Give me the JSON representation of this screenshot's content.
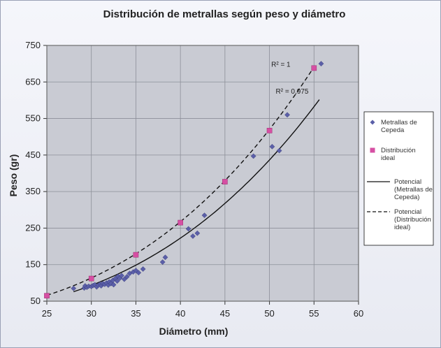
{
  "chart_data": {
    "type": "scatter",
    "title": "Distribución de metrallas según peso y diámetro",
    "xlabel": "Diámetro (mm)",
    "ylabel": "Peso (gr)",
    "xlim": [
      25,
      60
    ],
    "ylim": [
      50,
      750
    ],
    "x_ticks": [
      25,
      30,
      35,
      40,
      45,
      50,
      55,
      60
    ],
    "y_ticks": [
      50,
      150,
      250,
      350,
      450,
      550,
      650,
      750
    ],
    "grid": true,
    "legend_position": "right",
    "series": [
      {
        "name": "Metrallas de Cepeda",
        "kind": "scatter",
        "marker": "diamond",
        "color": "#5b5fa8",
        "points": [
          [
            28.0,
            85
          ],
          [
            29.2,
            86
          ],
          [
            29.3,
            92
          ],
          [
            29.5,
            88
          ],
          [
            29.7,
            91
          ],
          [
            30.0,
            90
          ],
          [
            30.2,
            93
          ],
          [
            30.4,
            95
          ],
          [
            30.6,
            89
          ],
          [
            30.8,
            94
          ],
          [
            31.0,
            97
          ],
          [
            31.1,
            92
          ],
          [
            31.3,
            98
          ],
          [
            31.5,
            96
          ],
          [
            31.7,
            100
          ],
          [
            31.9,
            94
          ],
          [
            32.0,
            103
          ],
          [
            32.2,
            98
          ],
          [
            32.4,
            107
          ],
          [
            32.5,
            95
          ],
          [
            32.7,
            112
          ],
          [
            32.9,
            105
          ],
          [
            33.0,
            118
          ],
          [
            33.2,
            113
          ],
          [
            33.4,
            120
          ],
          [
            33.7,
            110
          ],
          [
            34.0,
            117
          ],
          [
            34.3,
            126
          ],
          [
            34.7,
            130
          ],
          [
            35.0,
            134
          ],
          [
            35.3,
            128
          ],
          [
            35.8,
            138
          ],
          [
            38.0,
            157
          ],
          [
            38.3,
            170
          ],
          [
            40.9,
            248
          ],
          [
            41.4,
            228
          ],
          [
            41.9,
            236
          ],
          [
            42.7,
            285
          ],
          [
            48.2,
            447
          ],
          [
            50.3,
            473
          ],
          [
            51.1,
            462
          ],
          [
            52.0,
            560
          ],
          [
            55.8,
            700
          ]
        ]
      },
      {
        "name": "Distribución ideal",
        "kind": "scatter",
        "marker": "square",
        "color": "#d64fa3",
        "points": [
          [
            25,
            65
          ],
          [
            30,
            112
          ],
          [
            35,
            177
          ],
          [
            40,
            265
          ],
          [
            45,
            377
          ],
          [
            50,
            517
          ],
          [
            55,
            688
          ]
        ]
      },
      {
        "name": "Potencial (Metrallas de Cepeda)",
        "kind": "line",
        "style": "solid",
        "color": "#111111",
        "fit": {
          "a": 0.00323,
          "b": 3.02
        },
        "x_range": [
          28,
          55.6
        ]
      },
      {
        "name": "Potencial (Distribución ideal)",
        "kind": "line",
        "style": "dashed",
        "color": "#111111",
        "fit": {
          "a": 0.0045,
          "b": 2.98
        },
        "x_range": [
          25,
          55
        ]
      }
    ],
    "annotations": [
      {
        "text": "R² = 1",
        "x": 50.2,
        "y": 692
      },
      {
        "text": "R² = 0,975",
        "x": 50.7,
        "y": 618
      }
    ],
    "legend": [
      {
        "label": "Metrallas de Cepeda",
        "lines": [
          "Metrallas de",
          "Cepeda"
        ],
        "marker": "diamond",
        "color": "#5b5fa8"
      },
      {
        "label": "Distribución ideal",
        "lines": [
          "Distribución",
          "ideal"
        ],
        "marker": "square",
        "color": "#d64fa3"
      },
      {
        "label": "Potencial (Metrallas de Cepeda)",
        "lines": [
          "Potencial",
          "(Metrallas de",
          "Cepeda)"
        ],
        "marker": "solid-line",
        "color": "#111111"
      },
      {
        "label": "Potencial (Distribución ideal)",
        "lines": [
          "Potencial",
          "(Distribución",
          "ideal)"
        ],
        "marker": "dashed-line",
        "color": "#111111"
      }
    ]
  }
}
